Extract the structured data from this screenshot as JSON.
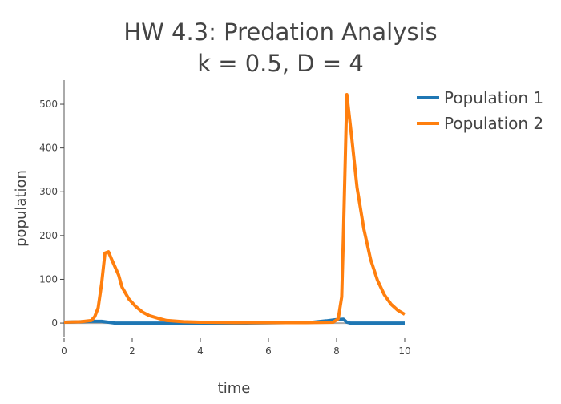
{
  "chart_data": {
    "type": "line",
    "title": "HW 4.3: Predation Analysis",
    "subtitle": "k = 0.5, D = 4",
    "xlabel": "time",
    "ylabel": "population",
    "xlim": [
      0,
      10
    ],
    "ylim": [
      -31,
      555
    ],
    "xticks": [
      0,
      2,
      4,
      6,
      8,
      10
    ],
    "yticks": [
      0,
      100,
      200,
      300,
      400,
      500
    ],
    "grid": false,
    "legend_position": "top-right",
    "series": [
      {
        "name": "Population 1",
        "color": "#1f77b4",
        "x": [
          0,
          0.5,
          0.8,
          1.1,
          1.3,
          1.5,
          2,
          3,
          4,
          5,
          6,
          7,
          7.3,
          7.7,
          8.0,
          8.2,
          8.3,
          8.4,
          9,
          10
        ],
        "y": [
          2,
          3,
          4,
          4,
          2,
          0,
          0,
          0,
          0,
          0,
          0.5,
          1.5,
          2,
          5,
          8,
          9,
          2,
          0,
          0,
          0
        ]
      },
      {
        "name": "Population 2",
        "color": "#ff7f0e",
        "x": [
          0,
          0.5,
          0.8,
          0.9,
          1.0,
          1.1,
          1.2,
          1.3,
          1.4,
          1.6,
          1.7,
          1.9,
          2.1,
          2.3,
          2.5,
          2.8,
          3.0,
          3.5,
          4,
          5,
          6,
          7,
          7.9,
          8.05,
          8.15,
          8.2,
          8.3,
          8.45,
          8.6,
          8.8,
          9.0,
          9.2,
          9.4,
          9.6,
          9.8,
          10
        ],
        "y": [
          2,
          3,
          6,
          15,
          35,
          90,
          160,
          163,
          145,
          110,
          82,
          55,
          38,
          25,
          17,
          10,
          6,
          3,
          2,
          1,
          1,
          1,
          2,
          10,
          60,
          200,
          522,
          420,
          310,
          215,
          145,
          98,
          65,
          43,
          29,
          20
        ]
      }
    ]
  }
}
